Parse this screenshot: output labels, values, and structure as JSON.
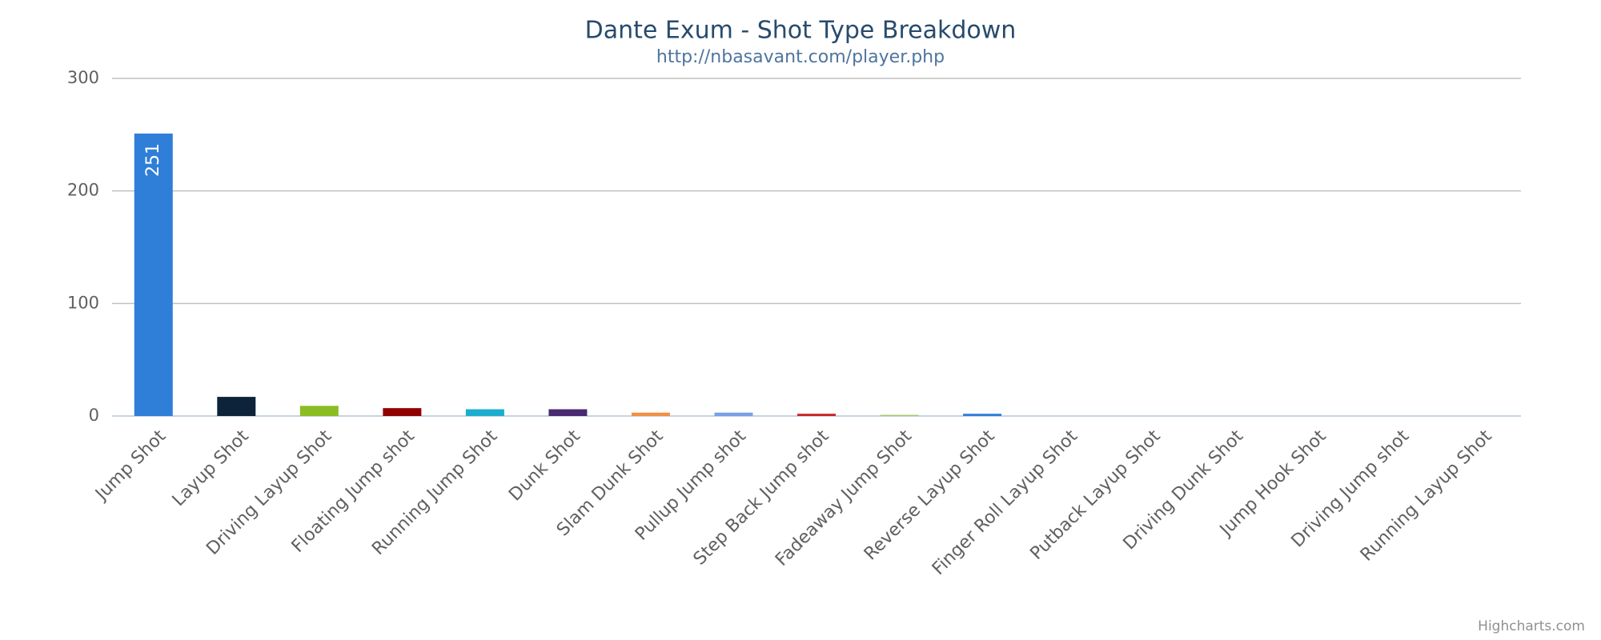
{
  "chart_data": {
    "type": "bar",
    "title": "Dante Exum - Shot Type Breakdown",
    "subtitle": "http://nbasavant.com/player.php",
    "credits": "Highcharts.com",
    "categories": [
      "Jump Shot",
      "Layup Shot",
      "Driving Layup Shot",
      "Floating Jump shot",
      "Running Jump Shot",
      "Dunk Shot",
      "Slam Dunk Shot",
      "Pullup Jump shot",
      "Step Back Jump shot",
      "Fadeaway Jump Shot",
      "Reverse Layup Shot",
      "Finger Roll Layup Shot",
      "Putback Layup Shot",
      "Driving Dunk Shot",
      "Jump Hook Shot",
      "Driving Jump shot",
      "Running Layup Shot"
    ],
    "values": [
      251,
      17,
      9,
      7,
      6,
      6,
      3,
      3,
      2,
      1,
      2,
      0,
      0,
      0,
      0,
      0,
      0
    ],
    "colors": [
      "#2f7ed8",
      "#0d233a",
      "#8bbc21",
      "#910000",
      "#1aadce",
      "#492970",
      "#f28f43",
      "#77a1e5",
      "#c42525",
      "#a6c96a",
      "#2f7ed8",
      "#0d233a",
      "#8bbc21",
      "#910000",
      "#1aadce",
      "#492970",
      "#f28f43"
    ],
    "ylim": [
      0,
      300
    ],
    "yticks": [
      0,
      100,
      200,
      300
    ],
    "grid": true
  }
}
